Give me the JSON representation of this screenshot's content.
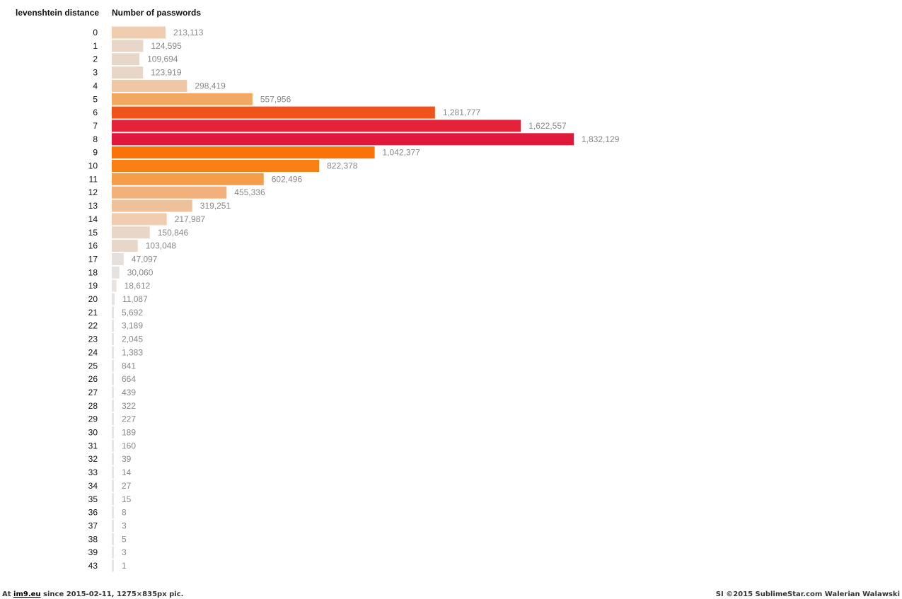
{
  "chart_data": {
    "type": "bar",
    "orientation": "horizontal",
    "x_header": "levenshtein distance",
    "y_header": "Number of passwords",
    "categories": [
      "0",
      "1",
      "2",
      "3",
      "4",
      "5",
      "6",
      "7",
      "8",
      "9",
      "10",
      "11",
      "12",
      "13",
      "14",
      "15",
      "16",
      "17",
      "18",
      "19",
      "20",
      "21",
      "22",
      "23",
      "24",
      "25",
      "26",
      "27",
      "28",
      "29",
      "30",
      "31",
      "32",
      "33",
      "34",
      "35",
      "36",
      "37",
      "38",
      "39",
      "43"
    ],
    "values": [
      213113,
      124595,
      109694,
      123919,
      298419,
      557956,
      1281777,
      1622557,
      1832129,
      1042377,
      822378,
      602496,
      455336,
      319251,
      217987,
      150846,
      103048,
      47097,
      30060,
      18612,
      11087,
      5692,
      3189,
      2045,
      1383,
      841,
      664,
      439,
      322,
      227,
      189,
      160,
      39,
      14,
      27,
      15,
      8,
      3,
      5,
      3,
      1
    ],
    "value_labels": [
      "213,113",
      "124,595",
      "109,694",
      "123,919",
      "298,419",
      "557,956",
      "1,281,777",
      "1,622,557",
      "1,832,129",
      "1,042,377",
      "822,378",
      "602,496",
      "455,336",
      "319,251",
      "217,987",
      "150,846",
      "103,048",
      "47,097",
      "30,060",
      "18,612",
      "11,087",
      "5,692",
      "3,189",
      "2,045",
      "1,383",
      "841",
      "664",
      "439",
      "322",
      "227",
      "189",
      "160",
      "39",
      "14",
      "27",
      "15",
      "8",
      "3",
      "5",
      "3",
      "1"
    ],
    "colors": [
      "#efcdae",
      "#e8d7c8",
      "#e8d7c8",
      "#e8d7c8",
      "#efc8a3",
      "#f2a862",
      "#ef5319",
      "#e52238",
      "#e0183c",
      "#fa7308",
      "#fa7f14",
      "#f49e4a",
      "#f2b07a",
      "#efc19a",
      "#efcdae",
      "#e8d7c8",
      "#e8d7c8",
      "#e6e0dc",
      "#e6e2df",
      "#e6e3e1",
      "#e6e4e2",
      "#e6e4e3",
      "#e7e5e4",
      "#e7e5e4",
      "#e7e5e4",
      "#e7e6e5",
      "#e7e6e5",
      "#e7e6e5",
      "#e7e6e5",
      "#e7e6e5",
      "#e7e6e5",
      "#e7e6e5",
      "#e7e6e5",
      "#e7e6e5",
      "#e7e6e5",
      "#e7e6e5",
      "#e7e6e5",
      "#e7e6e5",
      "#e7e6e5",
      "#e7e6e5",
      "#e7e6e5"
    ],
    "grid": false,
    "legend": "none"
  },
  "footer": {
    "prefix": "At",
    "site": "im9.eu",
    "suffix": "since 2015-02-11, 1275×835px pic.",
    "credit": "SI ©2015 SublimeStar.com Walerian Walawski"
  }
}
